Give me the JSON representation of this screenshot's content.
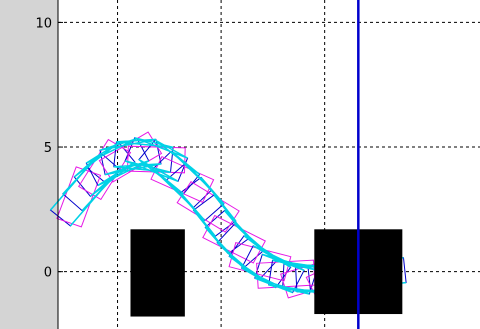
{
  "chart_data": {
    "type": "line",
    "title": "",
    "xlabel": "",
    "ylabel": "",
    "xlim": [
      -2.3,
      14.0
    ],
    "ylim": [
      -2.3,
      10.9
    ],
    "y_ticks": [
      {
        "value": 10,
        "label": "10"
      },
      {
        "value": 5,
        "label": "5"
      },
      {
        "value": 0,
        "label": "0"
      }
    ],
    "x_grid": [
      0,
      4,
      8
    ],
    "y_grid": [
      10,
      5,
      0
    ],
    "grid": true,
    "legend": "none",
    "colors": {
      "frame": "#0000cc",
      "edge": "#00d2e6",
      "marker": "#e619e6",
      "obstacle": "#000000",
      "target": "#0000cc",
      "grid": "#000000",
      "background": "#ffffff",
      "margin": "#d4d4d4"
    },
    "trajectory": {
      "x": [
        -1.5,
        -1.0,
        -0.5,
        0.0,
        0.5,
        1.0,
        1.5,
        2.0,
        2.5,
        3.0,
        3.5,
        4.0,
        4.5,
        5.0,
        5.5,
        6.0,
        6.5,
        7.0,
        7.5,
        8.0,
        8.5,
        9.0,
        9.5,
        10.0
      ],
      "y": [
        3.0,
        3.6,
        4.1,
        4.4,
        4.6,
        4.6,
        4.5,
        4.2,
        3.7,
        3.2,
        2.6,
        1.9,
        1.3,
        0.8,
        0.4,
        0.1,
        -0.1,
        -0.2,
        -0.25,
        -0.25,
        -0.2,
        -0.15,
        -0.1,
        -0.05
      ],
      "length": 2.2,
      "width": 1.0
    },
    "obstacles": [
      {
        "x": [
          0.5,
          2.6
        ],
        "y": [
          -1.8,
          1.7
        ]
      },
      {
        "x": 7.6,
        "y": [
          -1.7,
          1.7
        ],
        "x2": 11.0
      }
    ],
    "target_line": {
      "x": 9.3
    }
  }
}
